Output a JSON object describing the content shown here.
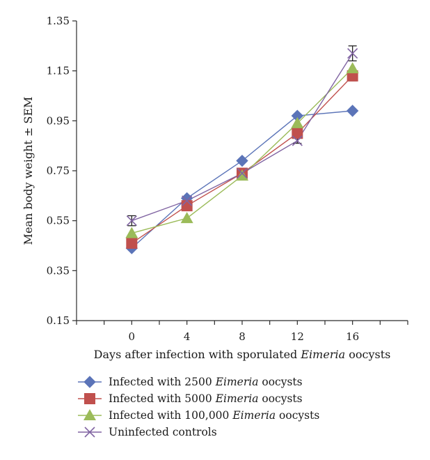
{
  "chart_data": {
    "type": "line",
    "xlabel_prefix": "Days after infection with sporulated ",
    "xlabel_italic": "Eimeria",
    "xlabel_suffix": " oocysts",
    "ylabel": "Mean body weight ± SEM",
    "x": [
      0,
      4,
      8,
      12,
      16
    ],
    "xlim": [
      -4,
      20
    ],
    "ylim": [
      0.15,
      1.35
    ],
    "yticks": [
      0.15,
      0.35,
      0.55,
      0.75,
      0.95,
      1.15,
      1.35
    ],
    "yticks_text": [
      "0.15",
      "0.35",
      "0.55",
      "0.75",
      "0.95",
      "1.15",
      "1.35"
    ],
    "xticks": [
      0,
      4,
      8,
      12,
      16
    ],
    "xticks_text": [
      "0",
      "4",
      "8",
      "12",
      "16"
    ],
    "grid": false,
    "legend_position": "bottom",
    "series": [
      {
        "name_prefix": "Infected with 2500 ",
        "name_italic": "Eimeria",
        "name_suffix": " oocysts",
        "marker": "diamond",
        "color": "#5b74b8",
        "values": [
          0.44,
          0.64,
          0.79,
          0.97,
          0.99
        ],
        "sem": [
          0,
          0,
          0,
          0,
          0
        ]
      },
      {
        "name_prefix": "Infected with 5000 ",
        "name_italic": "Eimeria",
        "name_suffix": " oocysts",
        "marker": "square",
        "color": "#c0504d",
        "values": [
          0.46,
          0.61,
          0.74,
          0.9,
          1.13
        ],
        "sem": [
          0,
          0.01,
          0,
          0,
          0.02
        ]
      },
      {
        "name_prefix": "Infected with 100,000 ",
        "name_italic": "Eimeria",
        "name_suffix": " oocysts",
        "marker": "triangle",
        "color": "#9bbb59",
        "values": [
          0.5,
          0.56,
          0.73,
          0.94,
          1.16
        ],
        "sem": [
          0,
          0,
          0,
          0,
          0
        ]
      },
      {
        "name_prefix": "Uninfected controls",
        "name_italic": "",
        "name_suffix": "",
        "marker": "cross",
        "color": "#8064a2",
        "values": [
          0.55,
          0.63,
          0.74,
          0.87,
          1.22
        ],
        "sem": [
          0.02,
          0,
          0,
          0.01,
          0.03
        ]
      }
    ]
  }
}
